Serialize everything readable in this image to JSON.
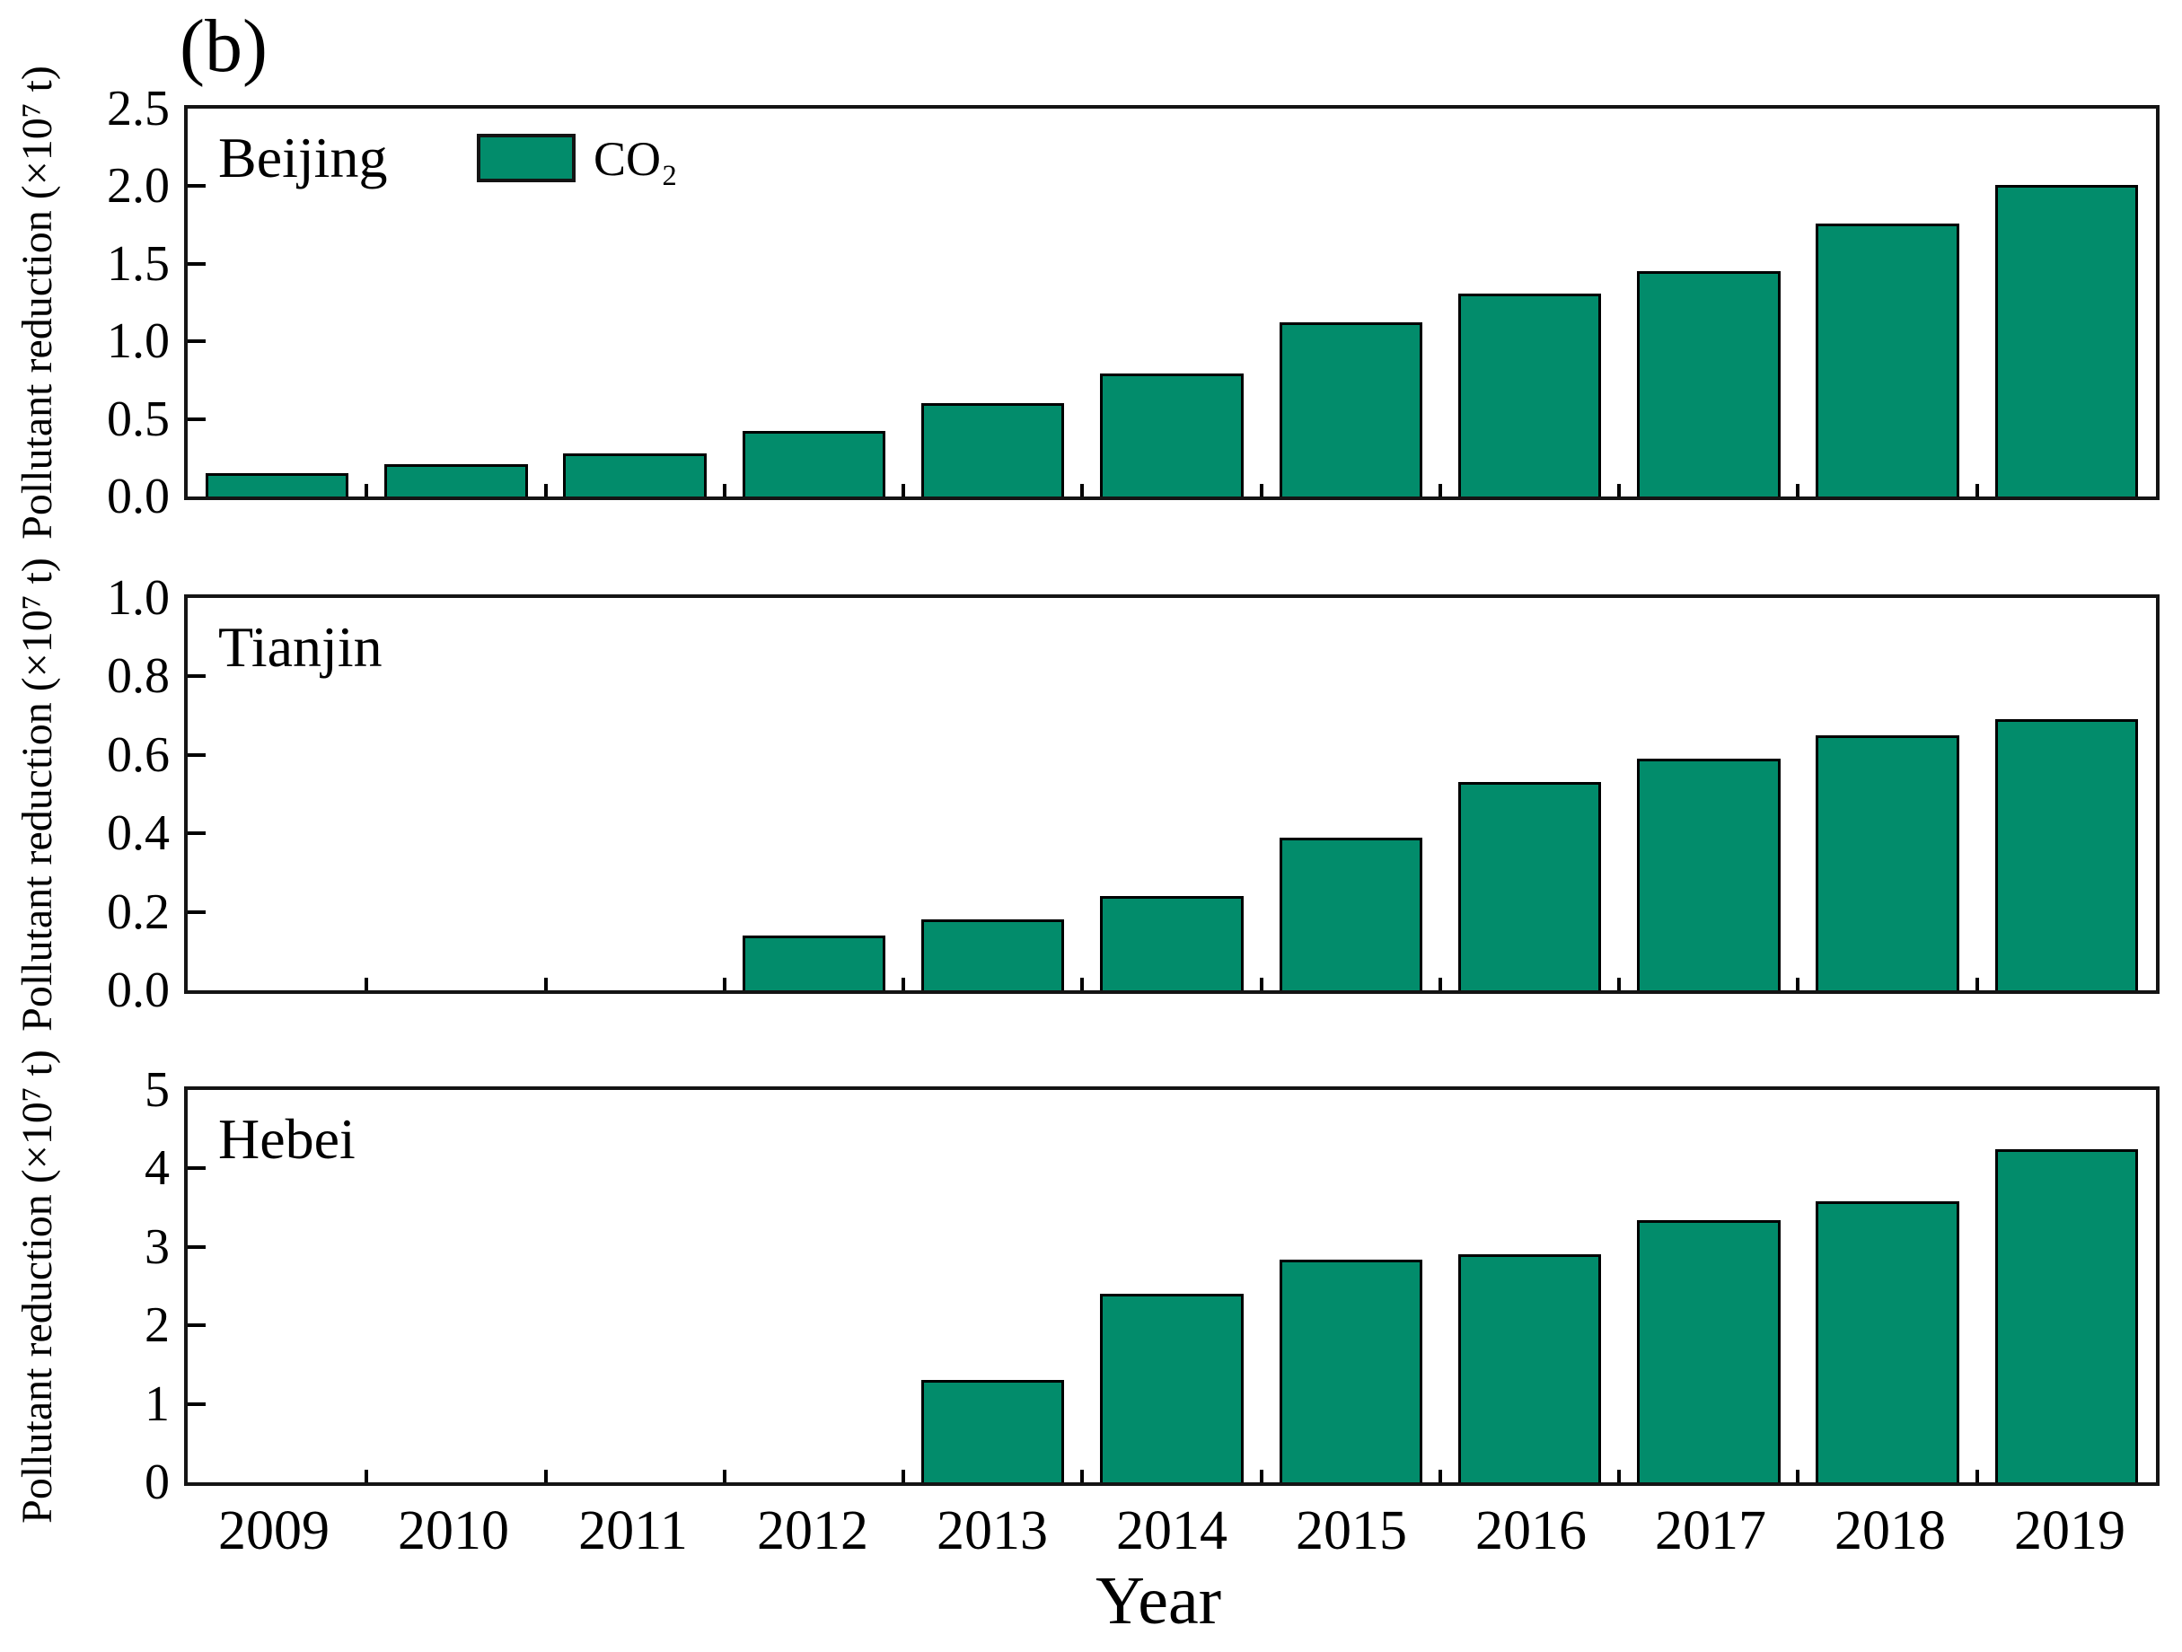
{
  "figure_label": "(b)",
  "xlabel": "Year",
  "legend": {
    "label": "CO₂",
    "color": "#028C6B"
  },
  "years": [
    "2009",
    "2010",
    "2011",
    "2012",
    "2013",
    "2014",
    "2015",
    "2016",
    "2017",
    "2018",
    "2019"
  ],
  "chart_data": [
    {
      "type": "bar",
      "panel_title": "Beijing",
      "series_name": "CO₂",
      "ylabel": "Pollutant reduction (×10⁷ t)",
      "categories": [
        "2009",
        "2010",
        "2011",
        "2012",
        "2013",
        "2014",
        "2015",
        "2016",
        "2017",
        "2018",
        "2019"
      ],
      "values": [
        0.15,
        0.21,
        0.28,
        0.42,
        0.6,
        0.79,
        1.12,
        1.31,
        1.45,
        1.76,
        2.01
      ],
      "ylim": [
        0,
        2.5
      ],
      "ytick_values": [
        0.0,
        0.5,
        1.0,
        1.5,
        2.0,
        2.5
      ],
      "ytick_labels": [
        "0.0",
        "0.5",
        "1.0",
        "1.5",
        "2.0",
        "2.5"
      ],
      "legend_position": "upper-left-inside",
      "grid": false
    },
    {
      "type": "bar",
      "panel_title": "Tianjin",
      "series_name": "CO₂",
      "ylabel": "Pollutant reduction (×10⁷ t)",
      "categories": [
        "2009",
        "2010",
        "2011",
        "2012",
        "2013",
        "2014",
        "2015",
        "2016",
        "2017",
        "2018",
        "2019"
      ],
      "values": [
        0,
        0,
        0,
        0.14,
        0.18,
        0.24,
        0.39,
        0.53,
        0.59,
        0.65,
        0.69
      ],
      "ylim": [
        0,
        1.0
      ],
      "ytick_values": [
        0.0,
        0.2,
        0.4,
        0.6,
        0.8,
        1.0
      ],
      "ytick_labels": [
        "0.0",
        "0.2",
        "0.4",
        "0.6",
        "0.8",
        "1.0"
      ],
      "grid": false
    },
    {
      "type": "bar",
      "panel_title": "Hebei",
      "series_name": "CO₂",
      "ylabel": "Pollutant reduction (×10⁷ t)",
      "categories": [
        "2009",
        "2010",
        "2011",
        "2012",
        "2013",
        "2014",
        "2015",
        "2016",
        "2017",
        "2018",
        "2019"
      ],
      "values": [
        0,
        0,
        0,
        0,
        1.3,
        2.4,
        2.84,
        2.91,
        3.34,
        3.58,
        4.25
      ],
      "ylim": [
        0,
        5
      ],
      "ytick_values": [
        0,
        1,
        2,
        3,
        4,
        5
      ],
      "ytick_labels": [
        "0",
        "1",
        "2",
        "3",
        "4",
        "5"
      ],
      "grid": false
    }
  ]
}
